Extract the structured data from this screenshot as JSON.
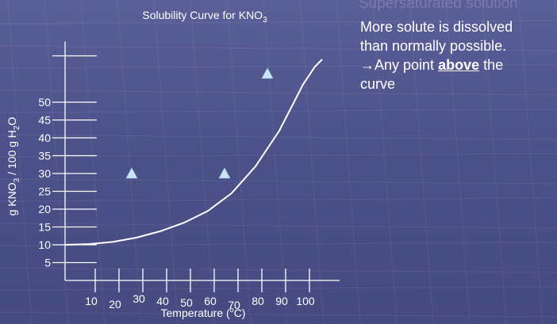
{
  "slide": {
    "faded_heading": "Supersaturated solution",
    "notes": {
      "line1": "More solute is dissolved",
      "line2": "than normally possible.",
      "arrow": "→",
      "line3_pre": "Any point ",
      "line3_emph": "above",
      "line3_post": " the",
      "line4": "curve"
    }
  },
  "chart_data": {
    "type": "line",
    "title": "Solubility Curve for KNO₃",
    "title_main": "Solubility Curve for KNO",
    "title_sub": "3",
    "xlabel": "Temperature (°C)",
    "xlabel_pre": "Temperature (",
    "xlabel_sup": "o",
    "xlabel_post": "C)",
    "ylabel": "g KNO₃ / 100 g H₂O",
    "ylabel_a": "g KNO",
    "ylabel_sub1": "3",
    "ylabel_b": " / 100 g H",
    "ylabel_sub2": "2",
    "ylabel_c": "O",
    "x_ticks": [
      10,
      20,
      30,
      40,
      50,
      60,
      70,
      80,
      90,
      100
    ],
    "y_ticks": [
      5,
      10,
      15,
      20,
      25,
      30,
      35,
      40,
      45,
      50
    ],
    "xlim": [
      0,
      108
    ],
    "ylim": [
      0,
      60
    ],
    "grid": false,
    "series": [
      {
        "x": [
          0,
          10,
          20,
          30,
          40,
          50,
          60,
          70,
          80,
          90,
          100,
          105,
          108
        ],
        "y": [
          10,
          10.2,
          10.8,
          12,
          13.8,
          16.2,
          19.5,
          24.5,
          32,
          42,
          55,
          60,
          62
        ]
      }
    ],
    "points": [
      {
        "x": 28,
        "y": 30
      },
      {
        "x": 67,
        "y": 30
      },
      {
        "x": 85,
        "y": 58
      }
    ],
    "colors": {
      "curve": "#ffffff",
      "marker": "#c8e6f5",
      "background": "#4c518a"
    }
  }
}
